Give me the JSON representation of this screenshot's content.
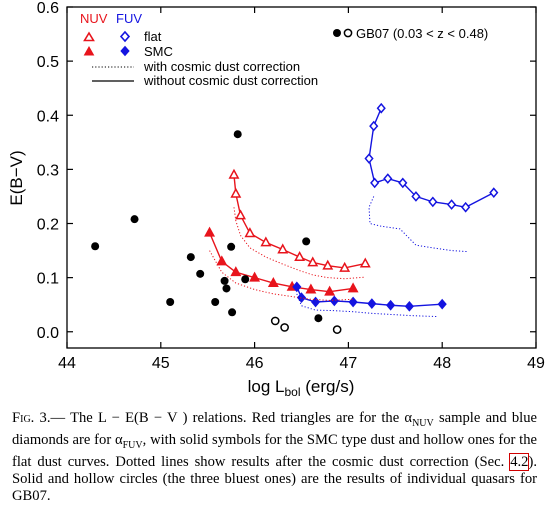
{
  "chart_data": {
    "type": "scatter",
    "xlabel_main": "log L",
    "xlabel_sub": "bol",
    "xlabel_unit": " (erg/s)",
    "ylabel": "E(B−V)",
    "xlim": [
      44,
      49
    ],
    "ylim": [
      -0.03,
      0.6
    ],
    "x_ticks": [
      44,
      45,
      46,
      47,
      48,
      49
    ],
    "y_ticks": [
      0.0,
      0.1,
      0.2,
      0.3,
      0.4,
      0.5,
      0.6
    ],
    "y_tick_labels": [
      "0.0",
      "0.1",
      "0.2",
      "0.3",
      "0.4",
      "0.5",
      "0.6"
    ],
    "grid": false,
    "legend": {
      "nuv_header": "NUV",
      "fuv_header": "FUV",
      "flat_label": "flat",
      "smc_label": "SMC",
      "dotted_label": "with cosmic dust correction",
      "solid_label": "without cosmic dust correction",
      "gb07_label": "GB07 (0.03 < z < 0.48)"
    },
    "colors": {
      "nuv": "#e8141c",
      "fuv": "#1414e0",
      "points": "#000000"
    },
    "series": [
      {
        "name": "NUV flat",
        "marker": "triangle-open",
        "color": "#e8141c",
        "x": [
          45.78,
          45.8,
          45.85,
          45.95,
          46.12,
          46.3,
          46.48,
          46.62,
          46.78,
          46.96,
          47.18
        ],
        "y": [
          0.29,
          0.255,
          0.215,
          0.182,
          0.165,
          0.152,
          0.138,
          0.128,
          0.122,
          0.118,
          0.126
        ]
      },
      {
        "name": "NUV SMC",
        "marker": "triangle-filled",
        "color": "#e8141c",
        "x": [
          45.52,
          45.65,
          45.8,
          46.0,
          46.2,
          46.4,
          46.6,
          46.8,
          47.05
        ],
        "y": [
          0.183,
          0.13,
          0.11,
          0.1,
          0.09,
          0.083,
          0.078,
          0.074,
          0.08
        ]
      },
      {
        "name": "FUV flat",
        "marker": "diamond-open",
        "color": "#1414e0",
        "x": [
          47.35,
          47.27,
          47.22,
          47.28,
          47.42,
          47.58,
          47.72,
          47.9,
          48.1,
          48.25,
          48.55
        ],
        "y": [
          0.413,
          0.38,
          0.32,
          0.275,
          0.283,
          0.275,
          0.25,
          0.24,
          0.235,
          0.23,
          0.257
        ]
      },
      {
        "name": "FUV SMC",
        "marker": "diamond-filled",
        "color": "#1414e0",
        "x": [
          46.45,
          46.5,
          46.65,
          46.85,
          47.05,
          47.25,
          47.45,
          47.65,
          48.0
        ],
        "y": [
          0.083,
          0.063,
          0.055,
          0.057,
          0.055,
          0.052,
          0.049,
          0.047,
          0.051
        ]
      },
      {
        "name": "NUV flat corrected",
        "marker": "none",
        "line": "dotted",
        "color": "#e8141c",
        "x": [
          45.78,
          45.8,
          45.85,
          45.95,
          46.12,
          46.3,
          46.48,
          46.62,
          46.78,
          46.96,
          47.18
        ],
        "y": [
          0.23,
          0.205,
          0.178,
          0.155,
          0.138,
          0.125,
          0.113,
          0.105,
          0.1,
          0.098,
          0.101
        ]
      },
      {
        "name": "NUV SMC corrected",
        "marker": "none",
        "line": "dotted",
        "color": "#e8141c",
        "x": [
          45.52,
          45.65,
          45.8,
          46.0,
          46.2,
          46.4,
          46.6,
          46.8,
          47.05
        ],
        "y": [
          0.15,
          0.11,
          0.09,
          0.078,
          0.07,
          0.065,
          0.06,
          0.058,
          0.06
        ]
      },
      {
        "name": "FUV flat corrected",
        "marker": "none",
        "line": "dotted",
        "color": "#1414e0",
        "x": [
          47.27,
          47.22,
          47.23,
          47.35,
          47.55,
          47.72,
          47.9,
          48.1,
          48.28
        ],
        "y": [
          0.25,
          0.23,
          0.2,
          0.195,
          0.19,
          0.16,
          0.155,
          0.15,
          0.148
        ]
      },
      {
        "name": "FUV SMC corrected",
        "marker": "none",
        "line": "dotted",
        "color": "#1414e0",
        "x": [
          46.45,
          46.5,
          46.65,
          46.85,
          47.05,
          47.25,
          47.45,
          47.65,
          47.95
        ],
        "y": [
          0.07,
          0.048,
          0.04,
          0.039,
          0.037,
          0.034,
          0.032,
          0.03,
          0.028
        ]
      },
      {
        "name": "GB07",
        "marker": "circle-filled",
        "color": "#000000",
        "x": [
          44.3,
          44.72,
          45.1,
          45.32,
          45.42,
          45.58,
          45.68,
          45.7,
          45.75,
          45.76,
          45.82,
          45.9,
          46.55,
          46.68
        ],
        "y": [
          0.158,
          0.208,
          0.055,
          0.138,
          0.107,
          0.055,
          0.094,
          0.08,
          0.157,
          0.036,
          0.365,
          0.097,
          0.167,
          0.025
        ]
      },
      {
        "name": "GB07 bluest",
        "marker": "circle-open",
        "color": "#000000",
        "x": [
          46.22,
          46.32,
          46.88
        ],
        "y": [
          0.02,
          0.008,
          0.004
        ]
      }
    ]
  },
  "caption": {
    "lead": "Fig. 3.",
    "part1": "— The L − E(B − V ) relations. Red triangles are for the α",
    "sub_nuv": "NUV",
    "part2": " sample and blue diamonds are for α",
    "sub_fuv": "FUV",
    "part3": ", with solid symbols for the SMC type dust and hollow ones for the flat dust curves. Dotted lines show results after the cosmic dust correction (Sec. ",
    "ref": "4.2",
    "part4": "). Solid and hollow circles (the three bluest ones) are the results of individual quasars for GB07."
  }
}
